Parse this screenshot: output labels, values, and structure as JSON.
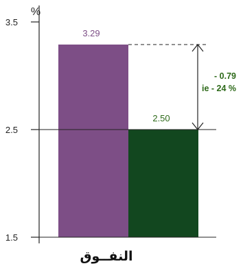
{
  "chart_data": {
    "type": "bar",
    "categories": [
      "",
      ""
    ],
    "values": [
      3.29,
      2.5
    ],
    "value_labels": [
      "3.29",
      "2.50"
    ],
    "colors": [
      "#7d4e86",
      "#12471f"
    ],
    "value_label_colors": [
      "#7d4e86",
      "#2e6a1a"
    ],
    "ylim": [
      1.5,
      3.5
    ],
    "yticks": [
      1.5,
      2.5,
      3.5
    ],
    "ytick_labels": [
      "1.5",
      "2.5",
      "3.5"
    ],
    "y_unit": "%",
    "xlabel": "النفــوق",
    "grid": false,
    "annotation": {
      "from": 3.29,
      "to": 2.5,
      "lines": [
        "- 0.79",
        "ie - 24 %"
      ],
      "color": "#2e6a1a"
    }
  }
}
